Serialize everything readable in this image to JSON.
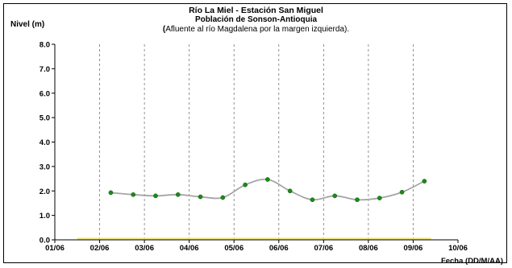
{
  "chart_data": {
    "type": "line",
    "title": "Río La Miel  - Estación San Miguel",
    "subtitle_line1": "Población de Sonson-Antioquia",
    "subtitle_line2_open": "(",
    "subtitle_line2_text": "Afluente al río Magdalena por la margen izquierda).",
    "ylabel": "Nivel (m)",
    "xlabel": "Fecha (DD/M/AA)",
    "ylim": [
      0,
      8
    ],
    "yticks": [
      "0.0",
      "1.0",
      "2.0",
      "3.0",
      "4.0",
      "5.0",
      "6.0",
      "7.0",
      "8.0"
    ],
    "xticks": [
      "01/06",
      "02/06",
      "03/06",
      "04/06",
      "05/06",
      "06/06",
      "07/06",
      "08/06",
      "09/06",
      "10/06"
    ],
    "xlim_days": [
      1,
      10
    ],
    "grid": "vertical-dashed",
    "colors": {
      "line": "#a6a6a6",
      "marker": "#1a8a1a",
      "baseline": "#f2e27a"
    },
    "series": [
      {
        "x": [
          "02/06 06:00",
          "02/06 18:00",
          "03/06 06:00",
          "03/06 18:00",
          "04/06 06:00",
          "04/06 18:00",
          "05/06 06:00",
          "05/06 18:00",
          "06/06 06:00",
          "06/06 18:00",
          "07/06 06:00",
          "07/06 18:00",
          "08/06 06:00",
          "08/06 18:00",
          "09/06 06:00"
        ],
        "values": [
          1.93,
          1.85,
          1.8,
          1.85,
          1.76,
          1.73,
          2.25,
          2.47,
          2.0,
          1.64,
          1.8,
          1.64,
          1.71,
          1.95,
          2.4
        ]
      }
    ]
  }
}
